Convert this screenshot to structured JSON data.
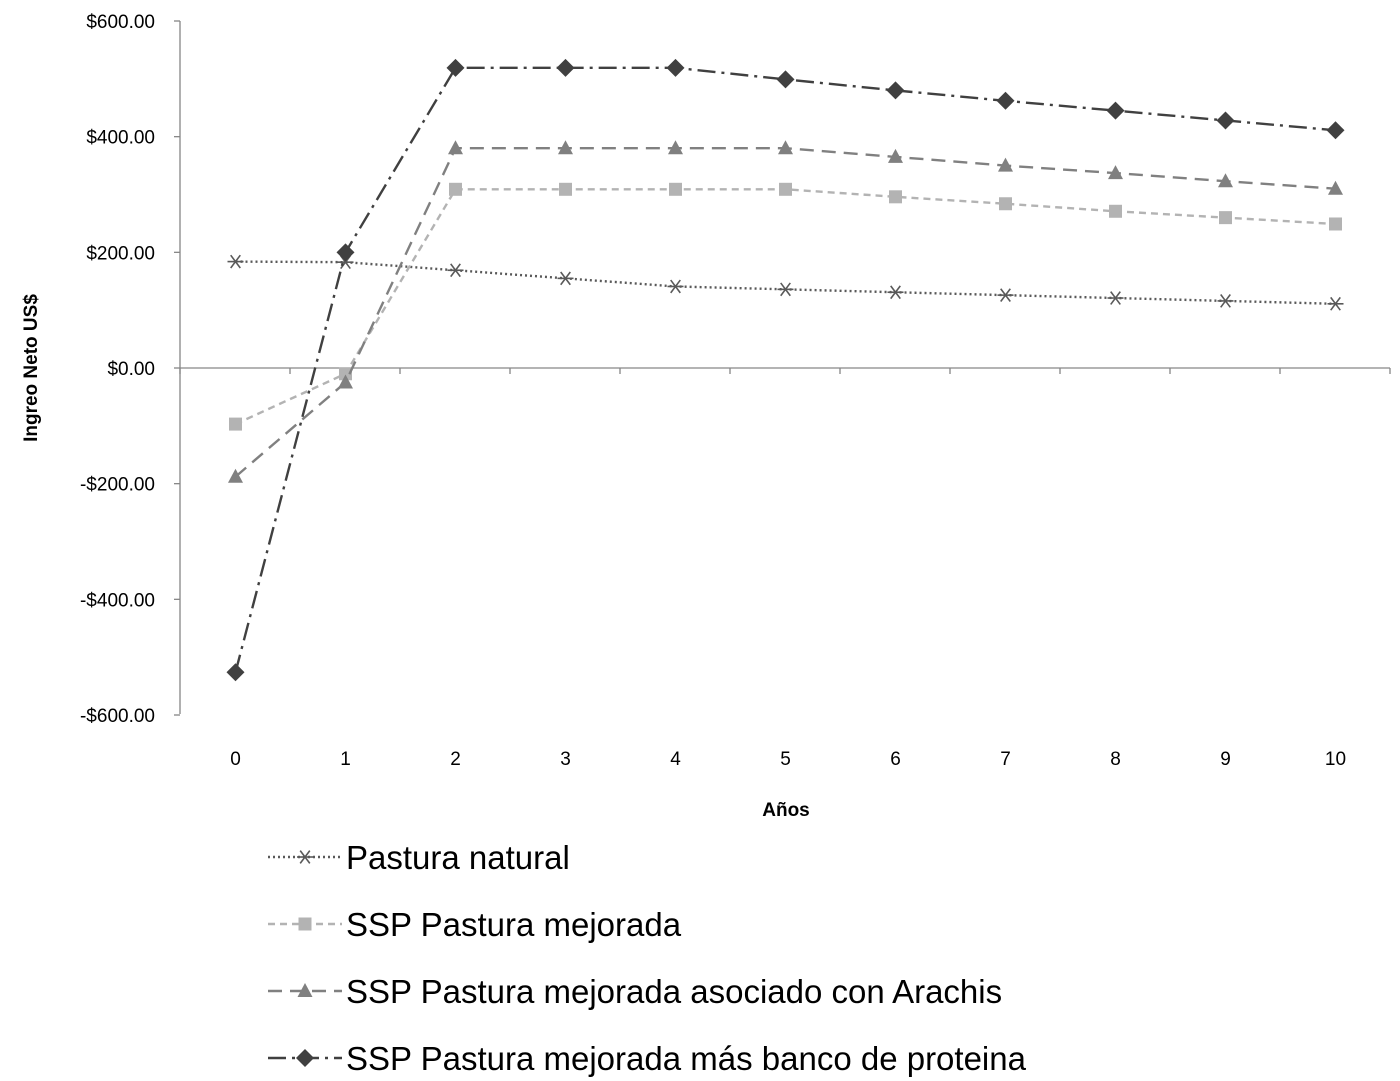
{
  "chart_data": {
    "type": "line",
    "title": "",
    "xlabel": "Años",
    "ylabel": "Ingreo Neto US$",
    "x": [
      0,
      1,
      2,
      3,
      4,
      5,
      6,
      7,
      8,
      9,
      10
    ],
    "x_tick_labels": [
      "0",
      "1",
      "2",
      "3",
      "4",
      "5",
      "6",
      "7",
      "8",
      "9",
      "10"
    ],
    "ylim": [
      -600,
      600
    ],
    "y_ticks": [
      600,
      400,
      200,
      0,
      -200,
      -400,
      -600
    ],
    "y_tick_labels": [
      "$600.00",
      "$400.00",
      "$200.00",
      "$0.00",
      "-$200.00",
      "-$400.00",
      "-$600.00"
    ],
    "negative_tick_color": "#ff0000",
    "grid": false,
    "legend_position": "bottom",
    "series": [
      {
        "name": "Pastura natural",
        "values": [
          184,
          183,
          169,
          155,
          141,
          136,
          131,
          126,
          121,
          116,
          111
        ],
        "color": "#595959",
        "dash": "dotted",
        "marker": "star"
      },
      {
        "name": "SSP Pastura mejorada",
        "values": [
          -97,
          -10,
          309,
          309,
          309,
          309,
          296,
          284,
          271,
          260,
          249
        ],
        "color": "#b3b3b3",
        "dash": "dashed",
        "marker": "square"
      },
      {
        "name": "SSP Pastura mejorada asociado con Arachis",
        "values": [
          -188,
          -25,
          380,
          380,
          380,
          380,
          365,
          350,
          337,
          323,
          310
        ],
        "color": "#808080",
        "dash": "long-dashed",
        "marker": "triangle"
      },
      {
        "name": "SSP Pastura mejorada más banco de proteina",
        "values": [
          -526,
          200,
          519,
          519,
          519,
          499,
          480,
          462,
          445,
          428,
          411
        ],
        "color": "#404040",
        "dash": "long-dash-dot",
        "marker": "diamond"
      }
    ]
  }
}
